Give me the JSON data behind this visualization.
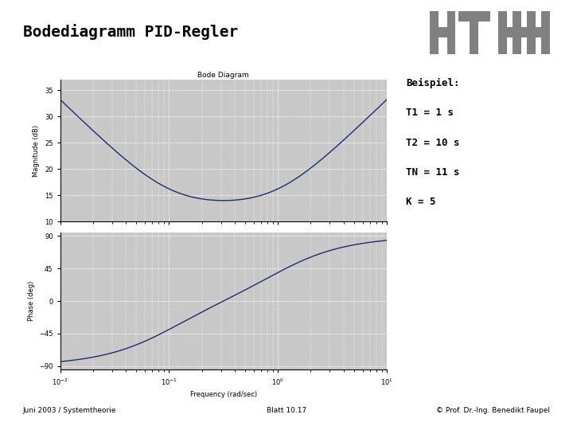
{
  "title": "Bodediagramm PID-Regler",
  "bode_title": "Bode Diagram",
  "T1": 1.0,
  "T2": 10.0,
  "TN": 11.0,
  "K": 5,
  "freq_min": 0.01,
  "freq_max": 10.0,
  "mag_yticks": [
    10,
    15,
    20,
    25,
    30,
    35
  ],
  "mag_ylim": [
    10,
    37
  ],
  "phase_yticks": [
    -90,
    -45,
    0,
    45,
    90
  ],
  "phase_ylim": [
    -95,
    95
  ],
  "line_color": "#1C2F6E",
  "plot_bg_color": "#C8C8C8",
  "main_bg_color": "#FFFFFF",
  "xlabel": "Frequency (rad/sec)",
  "ylabel_mag": "Magnitude (dB)",
  "ylabel_phase": "Phase (deg)",
  "annotation_lines": [
    "Beispiel:",
    "T1 = 1 s",
    "T2 = 10 s",
    "TN = 11 s",
    "K = 5"
  ],
  "footer_left": "Juni 2003 / Systemtheorie",
  "footer_center": "Blatt 10.17",
  "footer_right": "© Prof. Dr.-Ing. Benedikt Faupel",
  "logo_color": "#808080",
  "title_fontsize": 14,
  "tick_fontsize": 6,
  "label_fontsize": 6,
  "annot_fontsize": 9
}
